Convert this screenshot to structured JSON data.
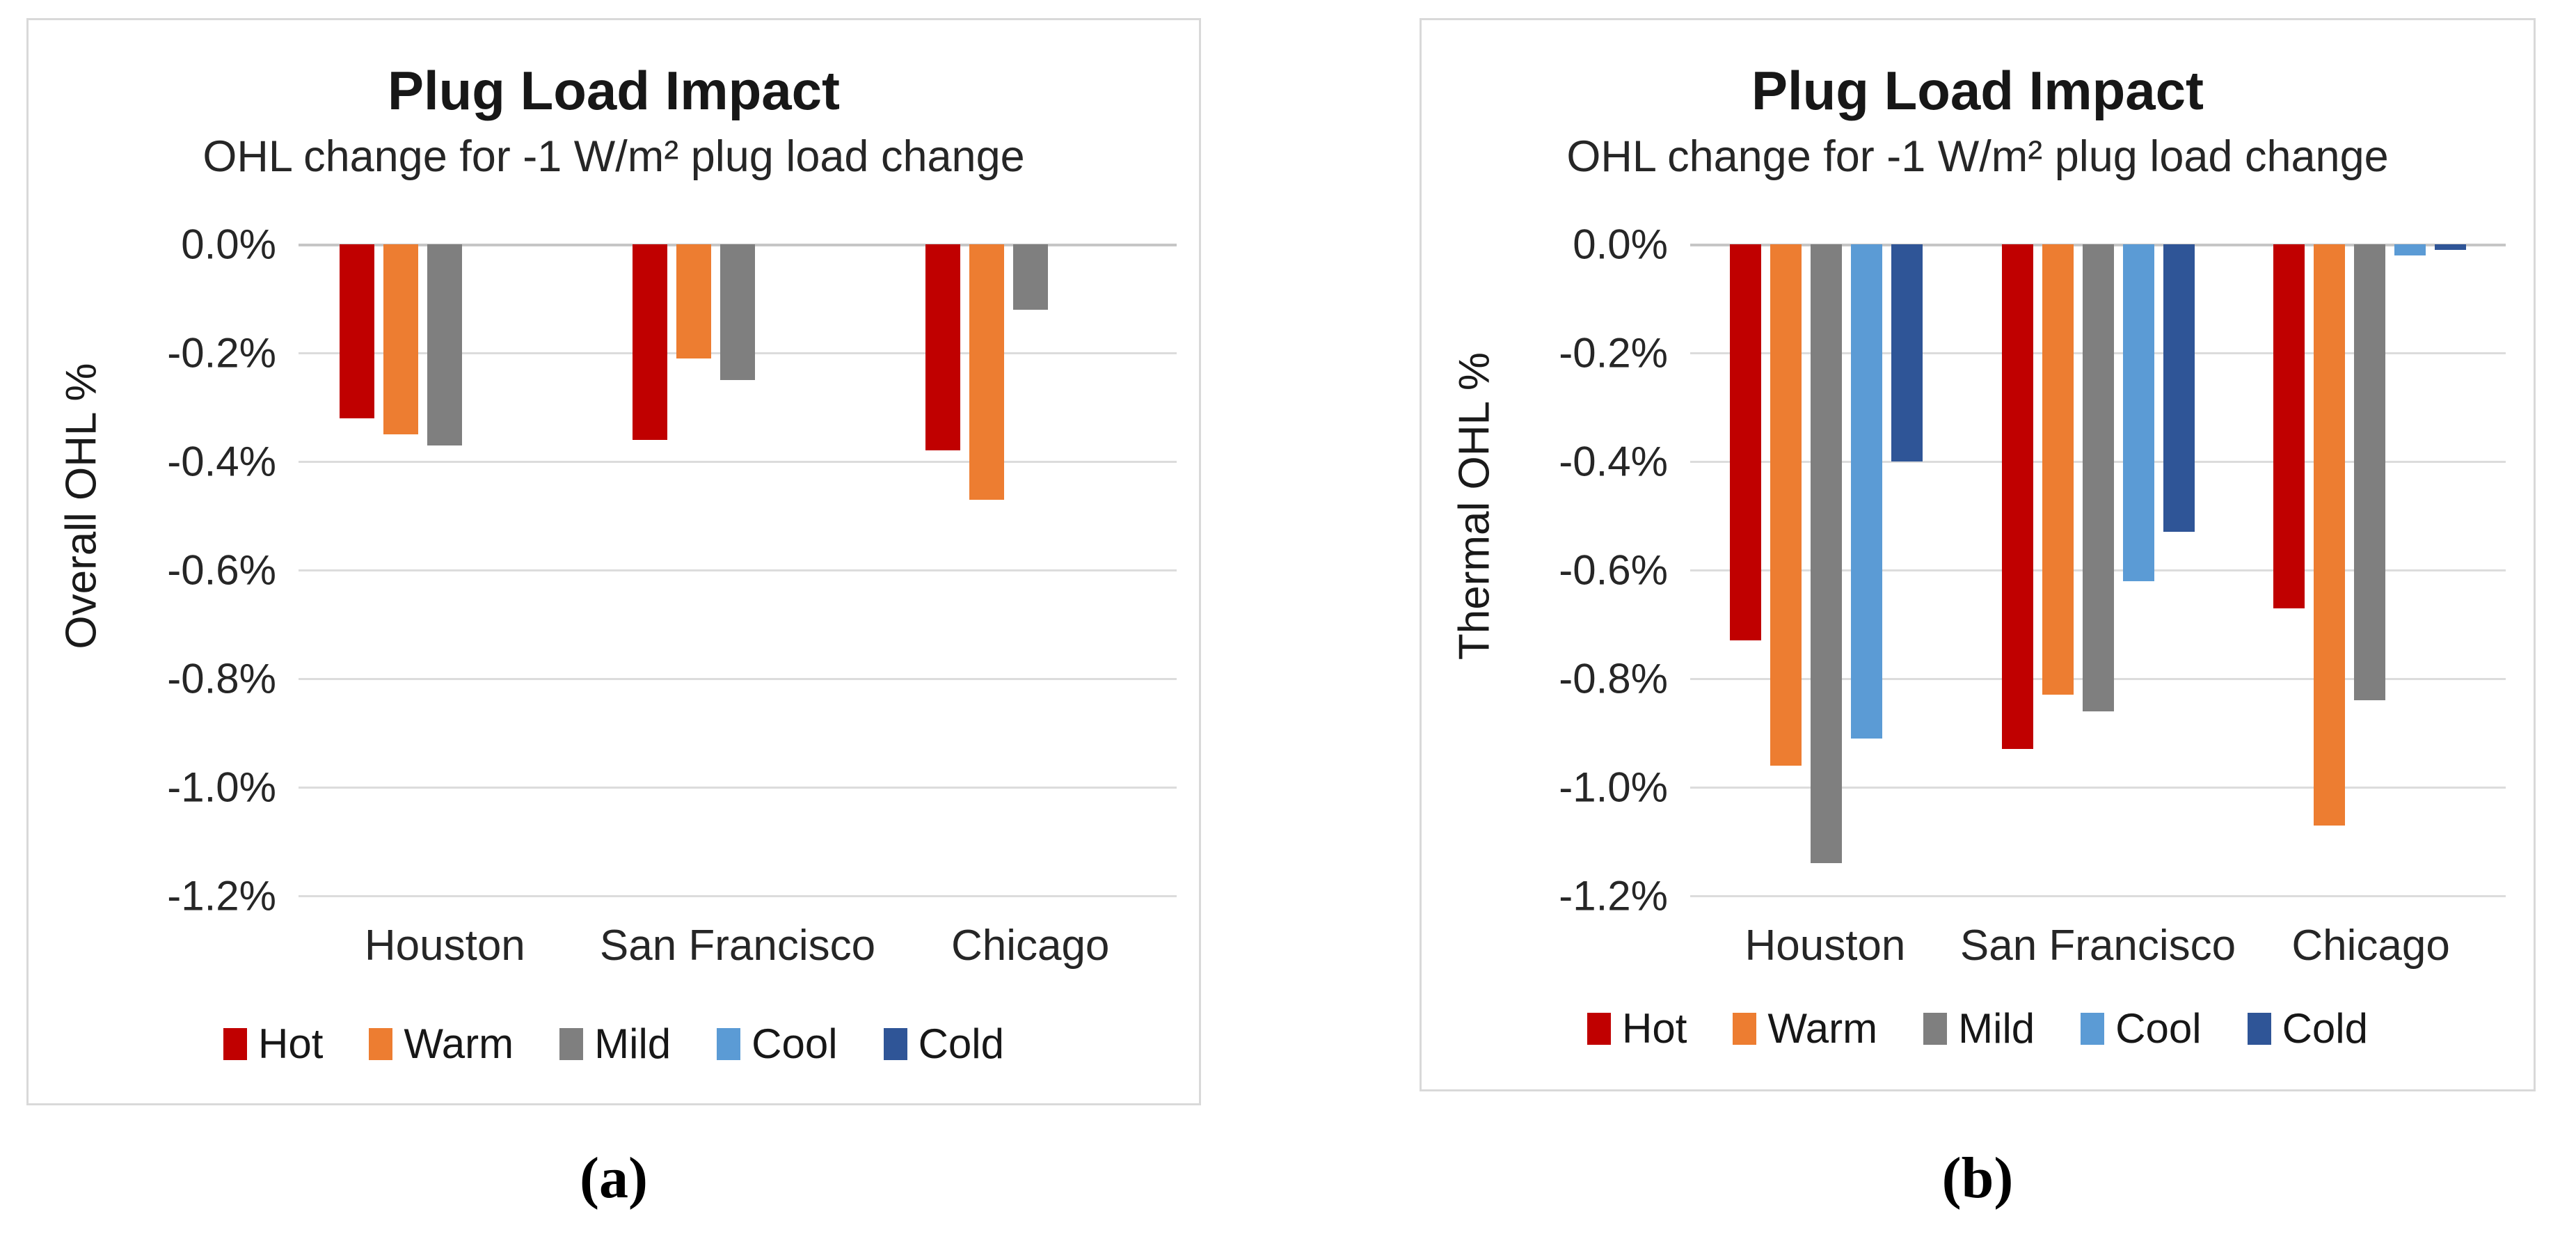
{
  "captions": {
    "a": "(a)",
    "b": "(b)"
  },
  "chart_data": [
    {
      "id": "a",
      "type": "bar",
      "title": "Plug Load Impact",
      "subtitle": "OHL change for -1 W/m² plug load change",
      "ylabel": "Overall OHL %",
      "categories": [
        "Houston",
        "San Francisco",
        "Chicago"
      ],
      "series": [
        {
          "name": "Hot",
          "color": "#C00000",
          "values": [
            -0.32,
            -0.36,
            -0.38
          ]
        },
        {
          "name": "Warm",
          "color": "#ED7D31",
          "values": [
            -0.35,
            -0.21,
            -0.47
          ]
        },
        {
          "name": "Mild",
          "color": "#7F7F7F",
          "values": [
            -0.37,
            -0.25,
            -0.12
          ]
        },
        {
          "name": "Cool",
          "color": "#5B9BD5",
          "values": [
            0.0,
            0.0,
            0.0
          ]
        },
        {
          "name": "Cold",
          "color": "#2F5597",
          "values": [
            0.0,
            0.0,
            0.0
          ]
        }
      ],
      "yticks": [
        "0.0%",
        "-0.2%",
        "-0.4%",
        "-0.6%",
        "-0.8%",
        "-1.0%",
        "-1.2%"
      ],
      "ytick_values": [
        0,
        -0.2,
        -0.4,
        -0.6,
        -0.8,
        -1.0,
        -1.2
      ],
      "ylim": [
        0,
        -1.2
      ],
      "grid": true,
      "legend_position": "bottom"
    },
    {
      "id": "b",
      "type": "bar",
      "title": "Plug Load Impact",
      "subtitle": "OHL change for -1 W/m² plug load change",
      "ylabel": "Thermal OHL %",
      "categories": [
        "Houston",
        "San Francisco",
        "Chicago"
      ],
      "series": [
        {
          "name": "Hot",
          "color": "#C00000",
          "values": [
            -0.73,
            -0.93,
            -0.67
          ]
        },
        {
          "name": "Warm",
          "color": "#ED7D31",
          "values": [
            -0.96,
            -0.83,
            -1.07
          ]
        },
        {
          "name": "Mild",
          "color": "#7F7F7F",
          "values": [
            -1.14,
            -0.86,
            -0.84
          ]
        },
        {
          "name": "Cool",
          "color": "#5B9BD5",
          "values": [
            -0.91,
            -0.62,
            -0.02
          ]
        },
        {
          "name": "Cold",
          "color": "#2F5597",
          "values": [
            -0.4,
            -0.53,
            -0.01
          ]
        }
      ],
      "yticks": [
        "0.0%",
        "-0.2%",
        "-0.4%",
        "-0.6%",
        "-0.8%",
        "-1.0%",
        "-1.2%"
      ],
      "ytick_values": [
        0,
        -0.2,
        -0.4,
        -0.6,
        -0.8,
        -1.0,
        -1.2
      ],
      "ylim": [
        0,
        -1.2
      ],
      "grid": true,
      "legend_position": "bottom"
    }
  ]
}
